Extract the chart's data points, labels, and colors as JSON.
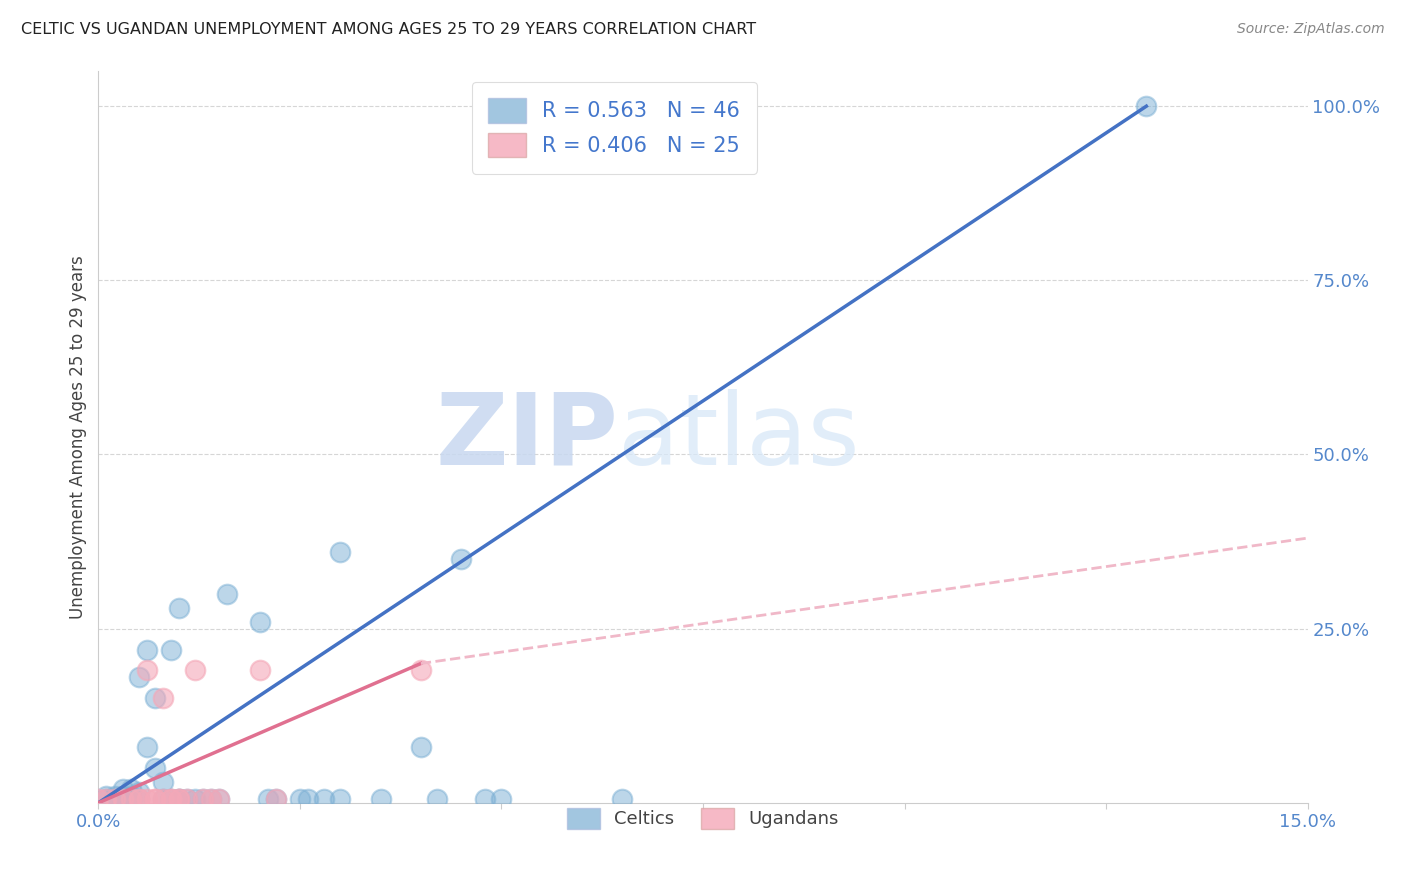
{
  "title": "CELTIC VS UGANDAN UNEMPLOYMENT AMONG AGES 25 TO 29 YEARS CORRELATION CHART",
  "source": "Source: ZipAtlas.com",
  "ylabel_label": "Unemployment Among Ages 25 to 29 years",
  "xlim": [
    0.0,
    0.15
  ],
  "ylim": [
    0.0,
    1.05
  ],
  "xticks": [
    0.0,
    0.025,
    0.05,
    0.075,
    0.1,
    0.125,
    0.15
  ],
  "xticklabels": [
    "0.0%",
    "",
    "",
    "",
    "",
    "",
    "15.0%"
  ],
  "yticks_right": [
    0.0,
    0.25,
    0.5,
    0.75,
    1.0
  ],
  "yticklabels_right": [
    "",
    "25.0%",
    "50.0%",
    "75.0%",
    "100.0%"
  ],
  "celtics_R": "0.563",
  "celtics_N": "46",
  "ugandans_R": "0.406",
  "ugandans_N": "25",
  "celtics_color": "#7BAFD4",
  "ugandans_color": "#F4A8B8",
  "regression_celtics_color": "#4472C4",
  "regression_ugandans_solid_color": "#E07090",
  "regression_ugandans_dashed_color": "#F0B8C8",
  "watermark_zip": "ZIP",
  "watermark_atlas": "atlas",
  "celtics_scatter": [
    [
      0.001,
      0.005
    ],
    [
      0.001,
      0.01
    ],
    [
      0.002,
      0.01
    ],
    [
      0.002,
      0.005
    ],
    [
      0.003,
      0.005
    ],
    [
      0.003,
      0.01
    ],
    [
      0.003,
      0.02
    ],
    [
      0.004,
      0.005
    ],
    [
      0.004,
      0.01
    ],
    [
      0.004,
      0.02
    ],
    [
      0.005,
      0.005
    ],
    [
      0.005,
      0.015
    ],
    [
      0.005,
      0.18
    ],
    [
      0.006,
      0.08
    ],
    [
      0.006,
      0.22
    ],
    [
      0.007,
      0.05
    ],
    [
      0.007,
      0.15
    ],
    [
      0.008,
      0.03
    ],
    [
      0.008,
      0.005
    ],
    [
      0.009,
      0.005
    ],
    [
      0.009,
      0.22
    ],
    [
      0.01,
      0.005
    ],
    [
      0.01,
      0.28
    ],
    [
      0.01,
      0.005
    ],
    [
      0.011,
      0.005
    ],
    [
      0.012,
      0.005
    ],
    [
      0.013,
      0.005
    ],
    [
      0.014,
      0.005
    ],
    [
      0.015,
      0.005
    ],
    [
      0.016,
      0.3
    ],
    [
      0.02,
      0.26
    ],
    [
      0.021,
      0.005
    ],
    [
      0.022,
      0.005
    ],
    [
      0.025,
      0.005
    ],
    [
      0.026,
      0.005
    ],
    [
      0.028,
      0.005
    ],
    [
      0.03,
      0.005
    ],
    [
      0.03,
      0.36
    ],
    [
      0.035,
      0.005
    ],
    [
      0.04,
      0.08
    ],
    [
      0.042,
      0.005
    ],
    [
      0.045,
      0.35
    ],
    [
      0.048,
      0.005
    ],
    [
      0.05,
      0.005
    ],
    [
      0.065,
      0.005
    ],
    [
      0.13,
      1.0
    ]
  ],
  "ugandans_scatter": [
    [
      0.001,
      0.005
    ],
    [
      0.002,
      0.005
    ],
    [
      0.003,
      0.005
    ],
    [
      0.004,
      0.005
    ],
    [
      0.005,
      0.005
    ],
    [
      0.005,
      0.005
    ],
    [
      0.006,
      0.005
    ],
    [
      0.006,
      0.19
    ],
    [
      0.007,
      0.005
    ],
    [
      0.007,
      0.005
    ],
    [
      0.008,
      0.005
    ],
    [
      0.008,
      0.15
    ],
    [
      0.009,
      0.005
    ],
    [
      0.009,
      0.005
    ],
    [
      0.01,
      0.005
    ],
    [
      0.01,
      0.005
    ],
    [
      0.011,
      0.005
    ],
    [
      0.012,
      0.19
    ],
    [
      0.013,
      0.005
    ],
    [
      0.014,
      0.005
    ],
    [
      0.015,
      0.005
    ],
    [
      0.02,
      0.19
    ],
    [
      0.022,
      0.005
    ],
    [
      0.04,
      0.19
    ],
    [
      0.0,
      0.005
    ]
  ],
  "regression_celtics_x0": 0.0,
  "regression_celtics_y0": 0.0,
  "regression_celtics_x1": 0.13,
  "regression_celtics_y1": 1.0,
  "regression_ugandans_x0": 0.0,
  "regression_ugandans_y0": 0.0,
  "regression_ugandans_x1_solid": 0.04,
  "regression_ugandans_y1_solid": 0.2,
  "regression_ugandans_x1_dashed": 0.15,
  "regression_ugandans_y1_dashed": 0.38,
  "background_color": "#FFFFFF",
  "grid_color": "#CCCCCC",
  "title_color": "#222222",
  "axis_label_color": "#444444",
  "tick_color": "#5588CC",
  "legend_label_color": "#4477CC"
}
